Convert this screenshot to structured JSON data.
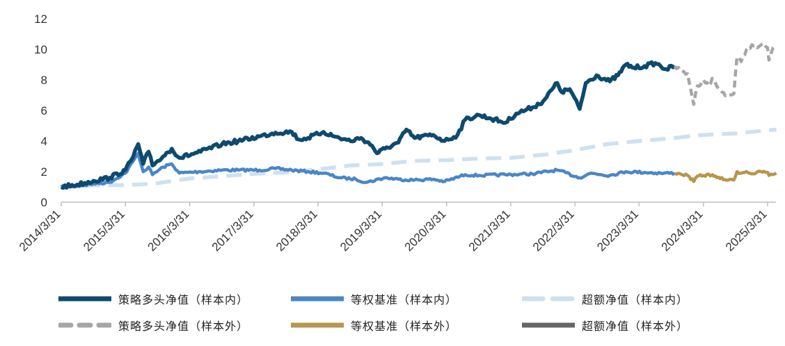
{
  "chart_data": {
    "type": "line",
    "title": "",
    "xlabel": "",
    "ylabel": "",
    "ylim": [
      0,
      12
    ],
    "yticks": [
      0,
      2,
      4,
      6,
      8,
      10,
      12
    ],
    "xlim": [
      "2014-03-31",
      "2025-05-31"
    ],
    "xticks": [
      "2014/3/31",
      "2015/3/31",
      "2016/3/31",
      "2017/3/31",
      "2018/3/31",
      "2019/3/31",
      "2020/3/31",
      "2021/3/31",
      "2022/3/31",
      "2023/3/31",
      "2024/3/31",
      "2025/3/31"
    ],
    "xtick_dates": [
      "2014-03-31",
      "2015-03-31",
      "2016-03-31",
      "2017-03-31",
      "2018-03-31",
      "2019-03-31",
      "2020-03-31",
      "2021-03-31",
      "2022-03-31",
      "2023-03-31",
      "2024-03-31",
      "2025-03-31"
    ],
    "grid": false,
    "legend_position": "bottom",
    "series": [
      {
        "name": "策略多头净值（样本内）",
        "color": "#0d4a6e",
        "style": "solid",
        "points": [
          [
            "2014-03-31",
            1.0
          ],
          [
            "2014-07-01",
            1.15
          ],
          [
            "2014-10-01",
            1.4
          ],
          [
            "2015-01-01",
            1.6
          ],
          [
            "2015-03-31",
            2.1
          ],
          [
            "2015-05-15",
            3.0
          ],
          [
            "2015-06-12",
            3.8
          ],
          [
            "2015-07-10",
            2.5
          ],
          [
            "2015-08-10",
            3.3
          ],
          [
            "2015-09-01",
            2.4
          ],
          [
            "2015-10-01",
            2.7
          ],
          [
            "2015-12-20",
            3.5
          ],
          [
            "2016-02-01",
            2.9
          ],
          [
            "2016-06-01",
            3.3
          ],
          [
            "2016-10-01",
            3.8
          ],
          [
            "2017-01-01",
            4.0
          ],
          [
            "2017-05-01",
            4.3
          ],
          [
            "2017-08-01",
            4.55
          ],
          [
            "2017-11-01",
            4.6
          ],
          [
            "2017-12-10",
            4.1
          ],
          [
            "2018-02-01",
            4.2
          ],
          [
            "2018-05-01",
            4.6
          ],
          [
            "2018-07-01",
            4.3
          ],
          [
            "2018-10-01",
            4.0
          ],
          [
            "2018-12-01",
            4.2
          ],
          [
            "2019-02-01",
            3.7
          ],
          [
            "2019-03-01",
            3.2
          ],
          [
            "2019-04-15",
            3.5
          ],
          [
            "2019-07-01",
            3.9
          ],
          [
            "2019-08-15",
            4.75
          ],
          [
            "2019-10-01",
            4.2
          ],
          [
            "2020-01-15",
            4.4
          ],
          [
            "2020-03-20",
            4.0
          ],
          [
            "2020-06-01",
            4.4
          ],
          [
            "2020-07-15",
            5.4
          ],
          [
            "2020-10-01",
            5.7
          ],
          [
            "2020-12-01",
            5.5
          ],
          [
            "2021-03-01",
            5.2
          ],
          [
            "2021-05-01",
            5.8
          ],
          [
            "2021-08-01",
            6.2
          ],
          [
            "2021-10-01",
            6.6
          ],
          [
            "2021-12-20",
            7.8
          ],
          [
            "2022-01-15",
            7.2
          ],
          [
            "2022-03-01",
            7.4
          ],
          [
            "2022-04-27",
            6.1
          ],
          [
            "2022-06-01",
            7.8
          ],
          [
            "2022-08-01",
            8.3
          ],
          [
            "2022-10-15",
            7.9
          ],
          [
            "2022-12-01",
            8.3
          ],
          [
            "2023-01-15",
            9.0
          ],
          [
            "2023-03-01",
            8.8
          ],
          [
            "2023-05-01",
            8.9
          ],
          [
            "2023-07-01",
            9.1
          ],
          [
            "2023-09-01",
            8.7
          ],
          [
            "2023-10-20",
            8.9
          ]
        ]
      },
      {
        "name": "等权基准（样本内）",
        "color": "#4a86c8",
        "style": "solid",
        "points": [
          [
            "2014-03-31",
            1.0
          ],
          [
            "2014-07-01",
            1.05
          ],
          [
            "2014-10-01",
            1.2
          ],
          [
            "2015-01-01",
            1.3
          ],
          [
            "2015-03-31",
            1.9
          ],
          [
            "2015-05-15",
            2.7
          ],
          [
            "2015-06-12",
            3.2
          ],
          [
            "2015-07-10",
            2.0
          ],
          [
            "2015-08-10",
            2.3
          ],
          [
            "2015-09-01",
            1.8
          ],
          [
            "2015-11-01",
            2.3
          ],
          [
            "2015-12-20",
            2.5
          ],
          [
            "2016-02-01",
            1.9
          ],
          [
            "2016-06-01",
            2.0
          ],
          [
            "2016-10-01",
            2.1
          ],
          [
            "2017-01-01",
            2.1
          ],
          [
            "2017-05-01",
            2.1
          ],
          [
            "2017-08-01",
            2.2
          ],
          [
            "2017-11-01",
            2.1
          ],
          [
            "2018-02-01",
            2.0
          ],
          [
            "2018-05-01",
            1.9
          ],
          [
            "2018-08-01",
            1.6
          ],
          [
            "2018-11-01",
            1.5
          ],
          [
            "2019-01-02",
            1.3
          ],
          [
            "2019-04-15",
            1.6
          ],
          [
            "2019-07-01",
            1.5
          ],
          [
            "2019-10-01",
            1.45
          ],
          [
            "2020-01-15",
            1.5
          ],
          [
            "2020-03-20",
            1.35
          ],
          [
            "2020-07-15",
            1.8
          ],
          [
            "2020-10-01",
            1.75
          ],
          [
            "2021-03-01",
            1.8
          ],
          [
            "2021-08-01",
            1.85
          ],
          [
            "2021-12-20",
            2.1
          ],
          [
            "2022-04-27",
            1.6
          ],
          [
            "2022-07-01",
            1.9
          ],
          [
            "2022-10-15",
            1.75
          ],
          [
            "2023-01-15",
            2.0
          ],
          [
            "2023-05-01",
            1.95
          ],
          [
            "2023-08-01",
            1.9
          ],
          [
            "2023-10-20",
            1.9
          ]
        ]
      },
      {
        "name": "超额净值（样本内）",
        "color": "#cfe0f0",
        "style": "dashed",
        "points": [
          [
            "2014-03-31",
            1.0
          ],
          [
            "2014-10-01",
            1.1
          ],
          [
            "2015-03-31",
            1.12
          ],
          [
            "2015-09-01",
            1.2
          ],
          [
            "2016-03-31",
            1.55
          ],
          [
            "2016-10-01",
            1.7
          ],
          [
            "2017-03-31",
            1.85
          ],
          [
            "2017-10-01",
            1.95
          ],
          [
            "2018-03-31",
            2.15
          ],
          [
            "2018-10-01",
            2.4
          ],
          [
            "2019-03-31",
            2.5
          ],
          [
            "2019-10-01",
            2.7
          ],
          [
            "2020-03-31",
            2.75
          ],
          [
            "2020-10-01",
            2.85
          ],
          [
            "2021-03-31",
            2.9
          ],
          [
            "2021-10-01",
            3.1
          ],
          [
            "2022-03-31",
            3.4
          ],
          [
            "2022-10-01",
            3.8
          ],
          [
            "2023-03-31",
            4.0
          ],
          [
            "2023-10-20",
            4.2
          ]
        ]
      },
      {
        "name": "策略多头净值（样本外）",
        "color": "#a6a6a6",
        "style": "dashed",
        "points": [
          [
            "2023-10-20",
            8.9
          ],
          [
            "2023-11-20",
            8.6
          ],
          [
            "2024-01-01",
            8.4
          ],
          [
            "2024-01-20",
            7.3
          ],
          [
            "2024-02-05",
            6.4
          ],
          [
            "2024-02-25",
            7.6
          ],
          [
            "2024-03-31",
            8.0
          ],
          [
            "2024-04-30",
            7.6
          ],
          [
            "2024-05-20",
            8.1
          ],
          [
            "2024-06-15",
            7.6
          ],
          [
            "2024-07-15",
            7.2
          ],
          [
            "2024-08-20",
            7.0
          ],
          [
            "2024-09-20",
            7.1
          ],
          [
            "2024-10-08",
            9.5
          ],
          [
            "2024-11-01",
            9.2
          ],
          [
            "2024-12-01",
            10.0
          ],
          [
            "2025-01-01",
            10.3
          ],
          [
            "2025-02-01",
            10.1
          ],
          [
            "2025-03-01",
            10.35
          ],
          [
            "2025-03-31",
            10.1
          ],
          [
            "2025-04-08",
            9.3
          ],
          [
            "2025-05-01",
            10.1
          ],
          [
            "2025-05-20",
            10.2
          ]
        ]
      },
      {
        "name": "等权基准（样本外）",
        "color": "#b8954e",
        "style": "solid",
        "points": [
          [
            "2023-10-20",
            1.9
          ],
          [
            "2023-11-20",
            1.85
          ],
          [
            "2024-01-01",
            1.75
          ],
          [
            "2024-02-05",
            1.35
          ],
          [
            "2024-02-25",
            1.7
          ],
          [
            "2024-03-31",
            1.75
          ],
          [
            "2024-05-20",
            1.8
          ],
          [
            "2024-06-15",
            1.6
          ],
          [
            "2024-08-20",
            1.45
          ],
          [
            "2024-09-20",
            1.45
          ],
          [
            "2024-10-08",
            2.0
          ],
          [
            "2024-11-01",
            1.9
          ],
          [
            "2024-12-01",
            2.0
          ],
          [
            "2025-01-10",
            1.85
          ],
          [
            "2025-02-20",
            2.0
          ],
          [
            "2025-03-31",
            1.95
          ],
          [
            "2025-04-08",
            1.75
          ],
          [
            "2025-05-20",
            1.9
          ]
        ]
      },
      {
        "name": "超额净值（样本外）",
        "color": "#666666",
        "style": "solid",
        "points": [
          [
            "2023-10-20",
            4.2
          ],
          [
            "2024-01-01",
            4.3
          ],
          [
            "2024-03-31",
            4.4
          ],
          [
            "2024-07-01",
            4.45
          ],
          [
            "2024-10-01",
            4.5
          ],
          [
            "2025-01-01",
            4.6
          ],
          [
            "2025-03-31",
            4.7
          ],
          [
            "2025-05-20",
            4.75
          ]
        ]
      }
    ]
  }
}
